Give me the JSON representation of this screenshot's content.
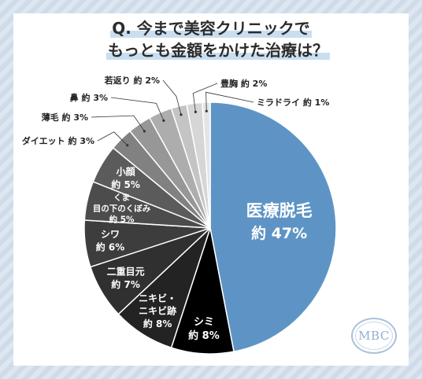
{
  "title": {
    "line1": "Q. 今まで美容クリニックで",
    "line2": "もっとも金額をかけた治療は？"
  },
  "logo": "MBC",
  "chart_data": {
    "type": "pie",
    "title": "Q. 今まで美容クリニックで もっとも金額をかけた治療は？",
    "unit": "%",
    "slices": [
      {
        "label": "医療脱毛",
        "value": 47,
        "value_label": "約 47%",
        "color": "#5e94c5"
      },
      {
        "label": "シミ",
        "value": 8,
        "value_label": "約 8%",
        "color": "#000000"
      },
      {
        "label": "ニキビ・ニキビ跡",
        "value": 8,
        "value_label": "約 8%",
        "color": "#232323"
      },
      {
        "label": "二重目元",
        "value": 7,
        "value_label": "約 7%",
        "color": "#303030"
      },
      {
        "label": "シワ",
        "value": 6,
        "value_label": "約 6%",
        "color": "#3d3d3d"
      },
      {
        "label": "くま 目の下のくぼみ",
        "value": 5,
        "value_label": "約 5%",
        "color": "#4c4c4c"
      },
      {
        "label": "小顔",
        "value": 5,
        "value_label": "約 5%",
        "color": "#5b5b5b"
      },
      {
        "label": "ダイエット",
        "value": 3,
        "value_label": "約 3%",
        "color": "#818181"
      },
      {
        "label": "薄毛",
        "value": 3,
        "value_label": "約 3%",
        "color": "#979797"
      },
      {
        "label": "鼻",
        "value": 3,
        "value_label": "約 3%",
        "color": "#adadad"
      },
      {
        "label": "若返り",
        "value": 2,
        "value_label": "約 2%",
        "color": "#c4c4c4"
      },
      {
        "label": "豊胸",
        "value": 2,
        "value_label": "約 2%",
        "color": "#d6d6d6"
      },
      {
        "label": "ミラドライ",
        "value": 1,
        "value_label": "約 1%",
        "color": "#e4e4e4"
      }
    ]
  }
}
